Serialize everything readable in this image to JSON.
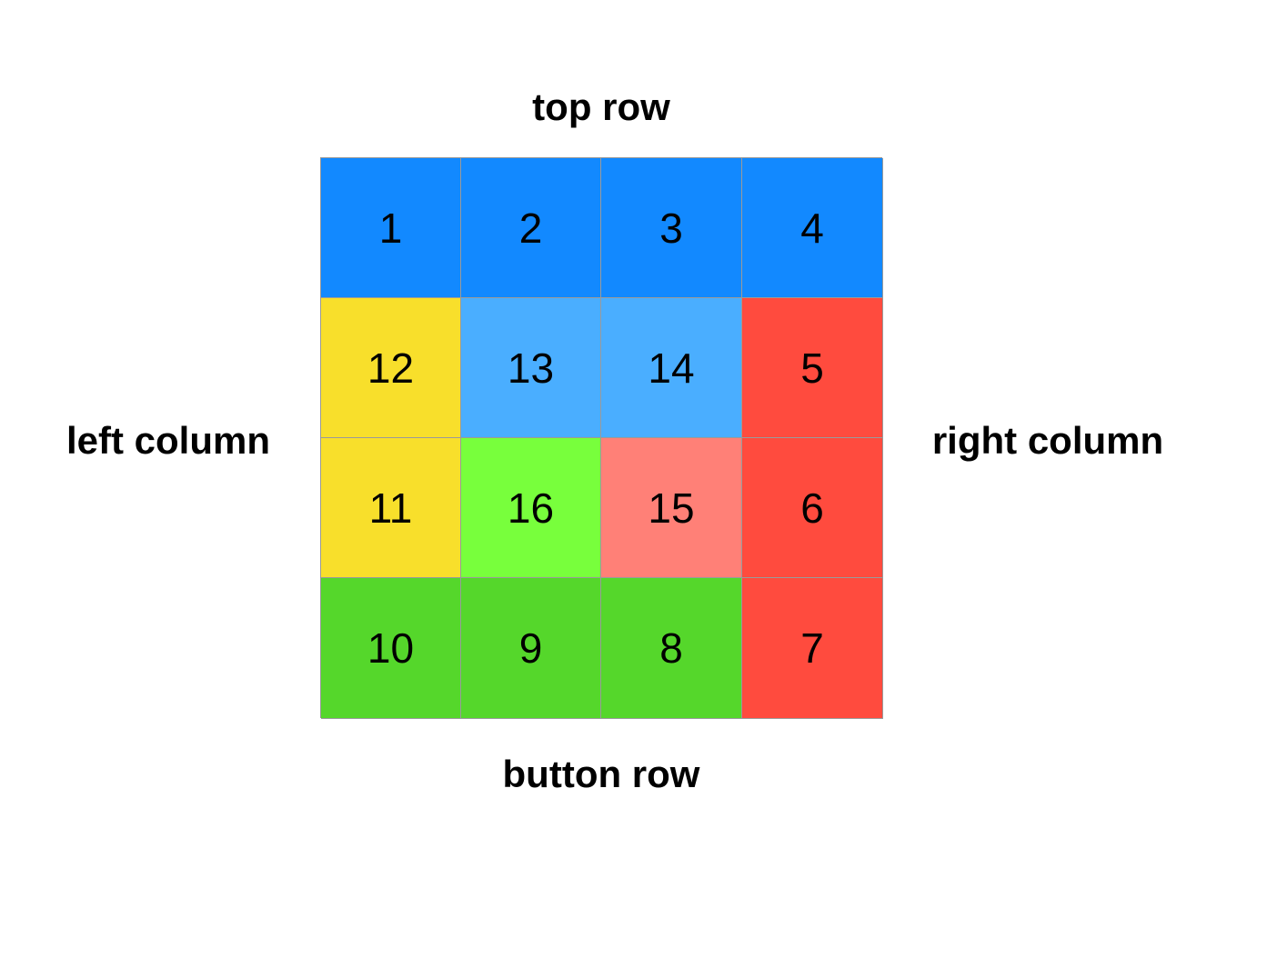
{
  "labels": {
    "top": "top row",
    "bottom": "button row",
    "left": "left column",
    "right": "right column"
  },
  "colors": {
    "blue": "#1289ff",
    "light_blue": "#4aaeff",
    "yellow": "#f8df2b",
    "red": "#ff4b3e",
    "salmon": "#ff8077",
    "light_green": "#78ff3c",
    "green": "#55d72b",
    "cell_border": "#9a9a9a"
  },
  "grid": {
    "cells": [
      {
        "number": "1",
        "color": "#1289ff"
      },
      {
        "number": "2",
        "color": "#1289ff"
      },
      {
        "number": "3",
        "color": "#1289ff"
      },
      {
        "number": "4",
        "color": "#1289ff"
      },
      {
        "number": "12",
        "color": "#f8df2b"
      },
      {
        "number": "13",
        "color": "#4aaeff"
      },
      {
        "number": "14",
        "color": "#4aaeff"
      },
      {
        "number": "5",
        "color": "#ff4b3e"
      },
      {
        "number": "11",
        "color": "#f8df2b"
      },
      {
        "number": "16",
        "color": "#78ff3c"
      },
      {
        "number": "15",
        "color": "#ff8077"
      },
      {
        "number": "6",
        "color": "#ff4b3e"
      },
      {
        "number": "10",
        "color": "#55d72b"
      },
      {
        "number": "9",
        "color": "#55d72b"
      },
      {
        "number": "8",
        "color": "#55d72b"
      },
      {
        "number": "7",
        "color": "#ff4b3e"
      }
    ]
  }
}
